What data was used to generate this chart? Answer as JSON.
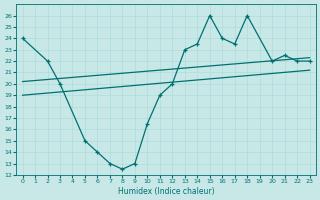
{
  "xlabel": "Humidex (Indice chaleur)",
  "bg_color": "#c8e8e8",
  "line_color": "#007070",
  "grid_color": "#a8d8d8",
  "zigzag_x": [
    0,
    2,
    3,
    5,
    6,
    7,
    8,
    9,
    10,
    11,
    12,
    13,
    14,
    15,
    16,
    17,
    18,
    20,
    21,
    22,
    23
  ],
  "zigzag_y": [
    24,
    22,
    20,
    15,
    14,
    13,
    12.5,
    13,
    16.5,
    19,
    20,
    23,
    23.5,
    26,
    24,
    23.5,
    26,
    22,
    22.5,
    22,
    22
  ],
  "trend1_x": [
    0,
    23
  ],
  "trend1_y": [
    20.2,
    22.3
  ],
  "trend2_x": [
    0,
    23
  ],
  "trend2_y": [
    19.0,
    21.2
  ],
  "ylim": [
    12,
    27
  ],
  "xlim": [
    -0.5,
    23.5
  ],
  "yticks": [
    12,
    13,
    14,
    15,
    16,
    17,
    18,
    19,
    20,
    21,
    22,
    23,
    24,
    25,
    26
  ],
  "xticks": [
    0,
    1,
    2,
    3,
    4,
    5,
    6,
    7,
    8,
    9,
    10,
    11,
    12,
    13,
    14,
    15,
    16,
    17,
    18,
    19,
    20,
    21,
    22,
    23
  ]
}
